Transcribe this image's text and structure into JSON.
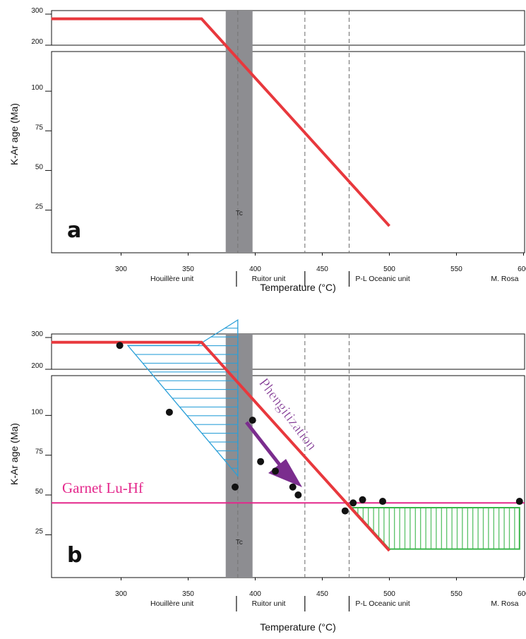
{
  "figure": {
    "panels": [
      "a",
      "b"
    ],
    "x_axis_title": "Temperature (°C)",
    "y_axis_title": "K-Ar age (Ma)",
    "tc_label": "Tc",
    "unit_labels": [
      "Houillère unit",
      "Ruitor unit",
      "P-L Oceanic unit",
      "M. Rosa"
    ],
    "colors": {
      "red_line": "#e8383d",
      "tc_band": "#8d8d91",
      "blue_hatch": "#2a9fd8",
      "green_hatch": "#39b54a",
      "garnet_line": "#e4288c",
      "arrow": "#7b2d8e",
      "points": "#111111"
    }
  },
  "chart_data": [
    {
      "panel": "a",
      "type": "line",
      "x_range": [
        250,
        600
      ],
      "x_ticks": [
        300,
        350,
        400,
        450,
        500,
        550,
        600
      ],
      "y_ticks_upper": [
        200,
        300
      ],
      "y_ticks_lower": [
        25,
        50,
        75,
        100
      ],
      "dashed_verticals": [
        387,
        437,
        470
      ],
      "tc_band": [
        378,
        398
      ],
      "series": [
        {
          "values": [
            [
              248,
              285
            ],
            [
              360,
              285
            ],
            [
              500,
              15
            ]
          ]
        }
      ]
    },
    {
      "panel": "b",
      "type": "scatter",
      "x_range": [
        250,
        600
      ],
      "x_ticks": [
        300,
        350,
        400,
        450,
        500,
        550,
        600
      ],
      "y_ticks_upper": [
        200,
        300
      ],
      "y_ticks_lower": [
        25,
        50,
        75,
        100
      ],
      "dashed_verticals": [
        387,
        437,
        470
      ],
      "tc_band": [
        378,
        398
      ],
      "series": [
        {
          "values": [
            [
              248,
              285
            ],
            [
              360,
              285
            ],
            [
              500,
              15
            ]
          ]
        }
      ],
      "points": [
        [
          299,
          275
        ],
        [
          336,
          102
        ],
        [
          398,
          97
        ],
        [
          404,
          71
        ],
        [
          415,
          65
        ],
        [
          385,
          55
        ],
        [
          428,
          55
        ],
        [
          432,
          50
        ],
        [
          467,
          40
        ],
        [
          473,
          45
        ],
        [
          480,
          47
        ],
        [
          495,
          46
        ],
        [
          597,
          46
        ]
      ],
      "horizontal_line": {
        "label": "Garnet Lu-Hf",
        "y": 45
      },
      "annotation": {
        "text": "Phengitization"
      },
      "blue_wedge": [
        [
          305,
          275
        ],
        [
          357,
          275
        ],
        [
          387,
          160
        ],
        [
          387,
          62
        ]
      ],
      "green_box": [
        [
          472,
          42
        ],
        [
          597,
          42
        ],
        [
          597,
          16
        ],
        [
          500,
          16
        ]
      ]
    }
  ]
}
